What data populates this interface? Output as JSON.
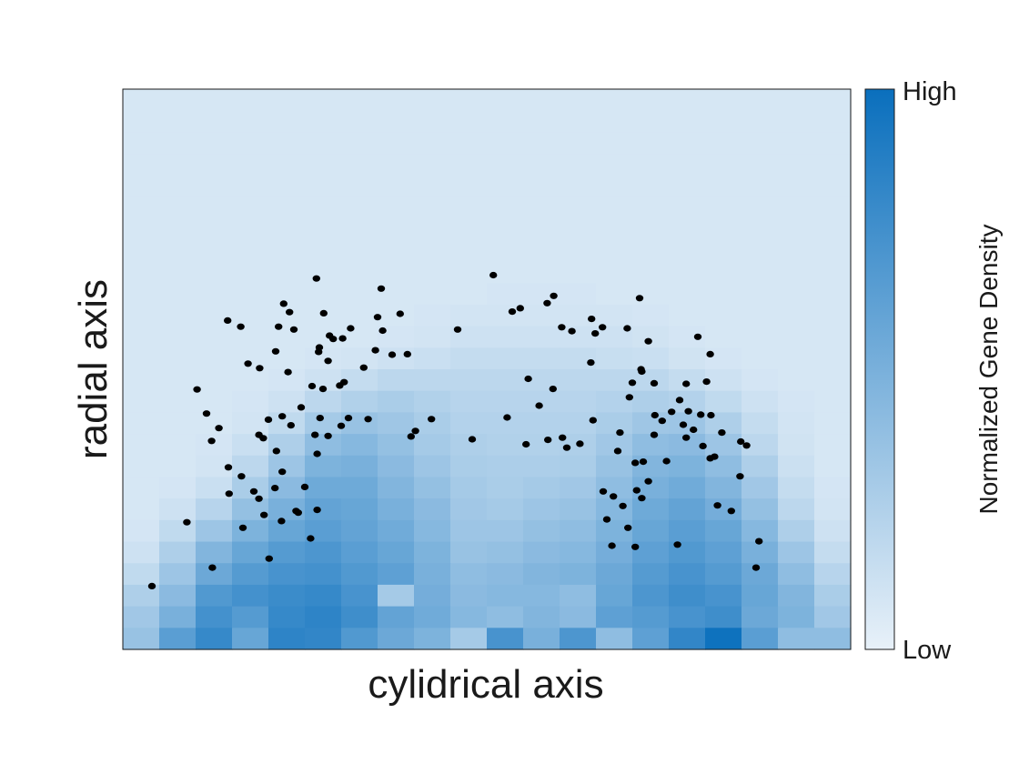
{
  "chart_data": {
    "type": "heatmap",
    "title": "",
    "xlabel": "cylidrical axis",
    "ylabel": "radial axis",
    "grid": false,
    "colorbar": {
      "label": "Normalized Gene Density",
      "high_label": "High",
      "low_label": "Low",
      "low_color": "#e8f1f9",
      "high_color": "#0a6fbd"
    },
    "heatmap": {
      "cols": 20,
      "rows": 26,
      "row_order": "top-to-bottom",
      "values": [
        [
          0.08,
          0.08,
          0.08,
          0.08,
          0.08,
          0.08,
          0.08,
          0.08,
          0.08,
          0.08,
          0.08,
          0.08,
          0.08,
          0.08,
          0.08,
          0.08,
          0.08,
          0.08,
          0.08,
          0.08
        ],
        [
          0.08,
          0.08,
          0.08,
          0.08,
          0.08,
          0.08,
          0.08,
          0.08,
          0.08,
          0.08,
          0.08,
          0.08,
          0.08,
          0.08,
          0.08,
          0.08,
          0.08,
          0.08,
          0.08,
          0.08
        ],
        [
          0.08,
          0.08,
          0.08,
          0.08,
          0.08,
          0.08,
          0.08,
          0.08,
          0.08,
          0.08,
          0.08,
          0.08,
          0.08,
          0.08,
          0.08,
          0.08,
          0.08,
          0.08,
          0.08,
          0.08
        ],
        [
          0.08,
          0.08,
          0.08,
          0.08,
          0.08,
          0.08,
          0.08,
          0.08,
          0.08,
          0.08,
          0.08,
          0.08,
          0.08,
          0.08,
          0.08,
          0.08,
          0.08,
          0.08,
          0.08,
          0.08
        ],
        [
          0.08,
          0.08,
          0.08,
          0.08,
          0.08,
          0.08,
          0.08,
          0.08,
          0.08,
          0.08,
          0.08,
          0.08,
          0.08,
          0.08,
          0.08,
          0.08,
          0.08,
          0.08,
          0.08,
          0.08
        ],
        [
          0.08,
          0.08,
          0.08,
          0.08,
          0.08,
          0.08,
          0.08,
          0.08,
          0.08,
          0.08,
          0.08,
          0.08,
          0.08,
          0.08,
          0.08,
          0.08,
          0.08,
          0.08,
          0.08,
          0.08
        ],
        [
          0.08,
          0.08,
          0.08,
          0.08,
          0.08,
          0.08,
          0.08,
          0.08,
          0.08,
          0.08,
          0.08,
          0.08,
          0.08,
          0.08,
          0.08,
          0.08,
          0.08,
          0.08,
          0.08,
          0.08
        ],
        [
          0.08,
          0.08,
          0.08,
          0.08,
          0.08,
          0.08,
          0.08,
          0.08,
          0.08,
          0.08,
          0.08,
          0.08,
          0.08,
          0.08,
          0.08,
          0.08,
          0.08,
          0.08,
          0.08,
          0.08
        ],
        [
          0.08,
          0.08,
          0.08,
          0.08,
          0.08,
          0.08,
          0.08,
          0.08,
          0.08,
          0.08,
          0.08,
          0.08,
          0.08,
          0.08,
          0.08,
          0.08,
          0.08,
          0.08,
          0.08,
          0.08
        ],
        [
          0.08,
          0.08,
          0.08,
          0.08,
          0.08,
          0.08,
          0.08,
          0.08,
          0.08,
          0.08,
          0.09,
          0.09,
          0.09,
          0.08,
          0.08,
          0.08,
          0.08,
          0.08,
          0.08,
          0.08
        ],
        [
          0.08,
          0.08,
          0.08,
          0.08,
          0.08,
          0.08,
          0.08,
          0.08,
          0.09,
          0.1,
          0.1,
          0.1,
          0.1,
          0.1,
          0.09,
          0.08,
          0.08,
          0.08,
          0.08,
          0.08
        ],
        [
          0.08,
          0.08,
          0.08,
          0.08,
          0.08,
          0.08,
          0.08,
          0.09,
          0.1,
          0.12,
          0.12,
          0.12,
          0.12,
          0.12,
          0.11,
          0.09,
          0.08,
          0.08,
          0.08,
          0.08
        ],
        [
          0.08,
          0.08,
          0.08,
          0.08,
          0.08,
          0.09,
          0.1,
          0.12,
          0.14,
          0.16,
          0.16,
          0.16,
          0.16,
          0.15,
          0.14,
          0.11,
          0.09,
          0.08,
          0.08,
          0.08
        ],
        [
          0.08,
          0.08,
          0.08,
          0.08,
          0.09,
          0.12,
          0.16,
          0.2,
          0.2,
          0.2,
          0.2,
          0.2,
          0.2,
          0.2,
          0.2,
          0.16,
          0.12,
          0.09,
          0.08,
          0.08
        ],
        [
          0.08,
          0.08,
          0.08,
          0.09,
          0.12,
          0.2,
          0.25,
          0.28,
          0.25,
          0.22,
          0.22,
          0.22,
          0.22,
          0.24,
          0.26,
          0.24,
          0.18,
          0.12,
          0.09,
          0.08
        ],
        [
          0.08,
          0.08,
          0.08,
          0.1,
          0.18,
          0.3,
          0.36,
          0.33,
          0.28,
          0.24,
          0.24,
          0.24,
          0.24,
          0.28,
          0.33,
          0.34,
          0.26,
          0.16,
          0.1,
          0.08
        ],
        [
          0.08,
          0.08,
          0.09,
          0.14,
          0.26,
          0.4,
          0.44,
          0.38,
          0.3,
          0.26,
          0.25,
          0.25,
          0.26,
          0.32,
          0.4,
          0.42,
          0.34,
          0.2,
          0.11,
          0.08
        ],
        [
          0.08,
          0.08,
          0.1,
          0.2,
          0.34,
          0.48,
          0.5,
          0.42,
          0.34,
          0.28,
          0.27,
          0.27,
          0.28,
          0.36,
          0.46,
          0.48,
          0.4,
          0.26,
          0.13,
          0.08
        ],
        [
          0.08,
          0.09,
          0.14,
          0.28,
          0.42,
          0.55,
          0.55,
          0.46,
          0.38,
          0.3,
          0.28,
          0.3,
          0.32,
          0.4,
          0.5,
          0.54,
          0.46,
          0.32,
          0.16,
          0.09
        ],
        [
          0.08,
          0.12,
          0.22,
          0.38,
          0.5,
          0.6,
          0.58,
          0.5,
          0.42,
          0.32,
          0.3,
          0.34,
          0.36,
          0.44,
          0.55,
          0.6,
          0.52,
          0.38,
          0.2,
          0.1
        ],
        [
          0.09,
          0.18,
          0.34,
          0.48,
          0.58,
          0.64,
          0.6,
          0.54,
          0.44,
          0.34,
          0.34,
          0.38,
          0.4,
          0.48,
          0.58,
          0.64,
          0.58,
          0.44,
          0.26,
          0.12
        ],
        [
          0.12,
          0.26,
          0.46,
          0.58,
          0.66,
          0.7,
          0.64,
          0.58,
          0.48,
          0.36,
          0.38,
          0.42,
          0.44,
          0.52,
          0.62,
          0.68,
          0.62,
          0.5,
          0.34,
          0.16
        ],
        [
          0.18,
          0.34,
          0.56,
          0.66,
          0.72,
          0.74,
          0.68,
          0.62,
          0.5,
          0.4,
          0.42,
          0.46,
          0.48,
          0.56,
          0.66,
          0.72,
          0.66,
          0.56,
          0.4,
          0.22
        ],
        [
          0.26,
          0.42,
          0.68,
          0.74,
          0.78,
          0.8,
          0.72,
          0.3,
          0.52,
          0.42,
          0.44,
          0.44,
          0.4,
          0.58,
          0.7,
          0.76,
          0.72,
          0.58,
          0.46,
          0.28
        ],
        [
          0.32,
          0.5,
          0.74,
          0.66,
          0.8,
          0.84,
          0.76,
          0.6,
          0.54,
          0.44,
          0.4,
          0.46,
          0.42,
          0.62,
          0.66,
          0.72,
          0.76,
          0.56,
          0.48,
          0.32
        ],
        [
          0.36,
          0.64,
          0.8,
          0.58,
          0.84,
          0.82,
          0.68,
          0.56,
          0.48,
          0.3,
          0.72,
          0.5,
          0.7,
          0.4,
          0.62,
          0.82,
          0.98,
          0.64,
          0.4,
          0.4
        ]
      ]
    },
    "points": [
      [
        0.04,
        0.113
      ],
      [
        0.088,
        0.227
      ],
      [
        0.123,
        0.146
      ],
      [
        0.145,
        0.325
      ],
      [
        0.122,
        0.372
      ],
      [
        0.115,
        0.421
      ],
      [
        0.102,
        0.464
      ],
      [
        0.132,
        0.395
      ],
      [
        0.146,
        0.278
      ],
      [
        0.165,
        0.217
      ],
      [
        0.163,
        0.309
      ],
      [
        0.194,
        0.24
      ],
      [
        0.18,
        0.282
      ],
      [
        0.187,
        0.269
      ],
      [
        0.209,
        0.288
      ],
      [
        0.201,
        0.162
      ],
      [
        0.218,
        0.229
      ],
      [
        0.238,
        0.247
      ],
      [
        0.267,
        0.249
      ],
      [
        0.258,
        0.198
      ],
      [
        0.241,
        0.244
      ],
      [
        0.25,
        0.29
      ],
      [
        0.211,
        0.354
      ],
      [
        0.187,
        0.383
      ],
      [
        0.193,
        0.377
      ],
      [
        0.219,
        0.317
      ],
      [
        0.2,
        0.41
      ],
      [
        0.219,
        0.416
      ],
      [
        0.231,
        0.4
      ],
      [
        0.245,
        0.432
      ],
      [
        0.264,
        0.383
      ],
      [
        0.271,
        0.413
      ],
      [
        0.275,
        0.465
      ],
      [
        0.298,
        0.471
      ],
      [
        0.331,
        0.503
      ],
      [
        0.267,
        0.349
      ],
      [
        0.282,
        0.381
      ],
      [
        0.31,
        0.413
      ],
      [
        0.227,
        0.495
      ],
      [
        0.214,
        0.576
      ],
      [
        0.229,
        0.602
      ],
      [
        0.26,
        0.47
      ],
      [
        0.269,
        0.531
      ],
      [
        0.289,
        0.554
      ],
      [
        0.302,
        0.555
      ],
      [
        0.35,
        0.593
      ],
      [
        0.381,
        0.599
      ],
      [
        0.347,
        0.534
      ],
      [
        0.357,
        0.569
      ],
      [
        0.37,
        0.526
      ],
      [
        0.304,
        0.477
      ],
      [
        0.282,
        0.515
      ],
      [
        0.27,
        0.539
      ],
      [
        0.21,
        0.532
      ],
      [
        0.188,
        0.502
      ],
      [
        0.172,
        0.51
      ],
      [
        0.144,
        0.587
      ],
      [
        0.162,
        0.576
      ],
      [
        0.221,
        0.617
      ],
      [
        0.235,
        0.571
      ],
      [
        0.266,
        0.662
      ],
      [
        0.284,
        0.56
      ],
      [
        0.276,
        0.6
      ],
      [
        0.313,
        0.573
      ],
      [
        0.355,
        0.644
      ],
      [
        0.424,
        0.411
      ],
      [
        0.396,
        0.38
      ],
      [
        0.402,
        0.39
      ],
      [
        0.3,
        0.399
      ],
      [
        0.337,
        0.411
      ],
      [
        0.391,
        0.527
      ],
      [
        0.46,
        0.571
      ],
      [
        0.509,
        0.668
      ],
      [
        0.535,
        0.603
      ],
      [
        0.583,
        0.618
      ],
      [
        0.528,
        0.414
      ],
      [
        0.584,
        0.374
      ],
      [
        0.61,
        0.36
      ],
      [
        0.604,
        0.378
      ],
      [
        0.646,
        0.409
      ],
      [
        0.68,
        0.354
      ],
      [
        0.66,
        0.282
      ],
      [
        0.665,
        0.232
      ],
      [
        0.674,
        0.273
      ],
      [
        0.687,
        0.256
      ],
      [
        0.672,
        0.185
      ],
      [
        0.694,
        0.217
      ],
      [
        0.704,
        0.183
      ],
      [
        0.706,
        0.284
      ],
      [
        0.683,
        0.387
      ],
      [
        0.715,
        0.335
      ],
      [
        0.722,
        0.3
      ],
      [
        0.731,
        0.418
      ],
      [
        0.741,
        0.408
      ],
      [
        0.77,
        0.401
      ],
      [
        0.784,
        0.392
      ],
      [
        0.797,
        0.363
      ],
      [
        0.807,
        0.341
      ],
      [
        0.823,
        0.387
      ],
      [
        0.849,
        0.371
      ],
      [
        0.874,
        0.193
      ],
      [
        0.762,
        0.187
      ],
      [
        0.7,
        0.476
      ],
      [
        0.713,
        0.496
      ],
      [
        0.693,
        0.573
      ],
      [
        0.644,
        0.59
      ],
      [
        0.659,
        0.575
      ],
      [
        0.643,
        0.512
      ],
      [
        0.603,
        0.575
      ],
      [
        0.546,
        0.609
      ],
      [
        0.557,
        0.483
      ],
      [
        0.591,
        0.465
      ],
      [
        0.696,
        0.45
      ],
      [
        0.73,
        0.475
      ],
      [
        0.754,
        0.424
      ],
      [
        0.765,
        0.445
      ],
      [
        0.777,
        0.425
      ],
      [
        0.808,
        0.418
      ],
      [
        0.802,
        0.478
      ],
      [
        0.848,
        0.309
      ],
      [
        0.87,
        0.146
      ],
      [
        0.836,
        0.247
      ],
      [
        0.817,
        0.257
      ],
      [
        0.794,
        0.419
      ],
      [
        0.774,
        0.474
      ],
      [
        0.747,
        0.336
      ],
      [
        0.73,
        0.383
      ],
      [
        0.704,
        0.333
      ],
      [
        0.713,
        0.27
      ],
      [
        0.628,
        0.367
      ],
      [
        0.649,
        0.564
      ],
      [
        0.712,
        0.5
      ],
      [
        0.774,
        0.378
      ],
      [
        0.807,
        0.527
      ],
      [
        0.857,
        0.364
      ],
      [
        0.813,
        0.344
      ],
      [
        0.71,
        0.627
      ],
      [
        0.79,
        0.558
      ],
      [
        0.722,
        0.55
      ],
      [
        0.617,
        0.568
      ],
      [
        0.592,
        0.631
      ],
      [
        0.554,
        0.366
      ],
      [
        0.48,
        0.375
      ],
      [
        0.572,
        0.435
      ]
    ]
  }
}
